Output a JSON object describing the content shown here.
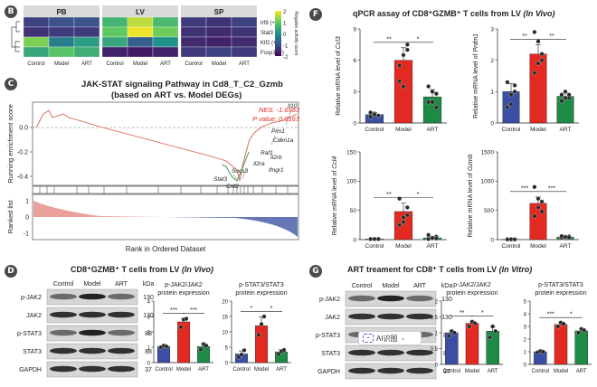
{
  "panels": {
    "B": "B",
    "C": "C",
    "D": "D",
    "F": "F",
    "G": "G"
  },
  "heatmap": {
    "groups": [
      "PB",
      "LV",
      "SP"
    ],
    "rows": [
      "Irf8 (+)",
      "Stat3 (+)",
      "Klf2 (+)",
      "Foxp1 (+)"
    ],
    "xlabels": [
      "Control",
      "Model",
      "ART",
      "Control",
      "Model",
      "ART",
      "Control",
      "Model",
      "ART"
    ],
    "legend_title": "Regulon activity score",
    "legend_ticks": [
      "2",
      "1",
      "0",
      "-1",
      "-2"
    ]
  },
  "gsea": {
    "title1": "JAK-STAT signaling Pathway in Cd8_T_C2_Gzmb",
    "title2": "(based on ART vs. Model DEGs)",
    "ylabel_top": "Running enrichment score",
    "ylabel_bottom": "Ranked list",
    "xlabel": "Rank in Ordered Dataset",
    "nes": "NES: -1.6983",
    "pvalue": "P value: 0.0163",
    "yticks_top": [
      "0.0",
      "-0.2",
      "-0.4"
    ],
    "yticks_bottom": [
      "1",
      "0",
      "-1"
    ],
    "genes": [
      "Il10",
      "Pim1",
      "Cdkn1a",
      "Raf1",
      "Il2rb",
      "Il2ra",
      "Ifngr1",
      "Socs3",
      "Stat3",
      "Crlf2"
    ]
  },
  "panelD": {
    "title": "CD8⁺GZMB⁺ T cells from LV ",
    "title_italic": "(In Vivo)",
    "blot_cols": [
      "Control",
      "Model",
      "ART"
    ],
    "kda": "kDa",
    "blot_rows": [
      {
        "label": "p-JAK2",
        "kda": "130"
      },
      {
        "label": "JAK2",
        "kda": "130"
      },
      {
        "label": "p-STAT3",
        "kda": "88"
      },
      {
        "label": "STAT3",
        "kda": "88"
      },
      {
        "label": "GAPDH",
        "kda": "37"
      }
    ],
    "chart1_title1": "p-JAK2/JAK2",
    "chart1_title2": "protein expression",
    "chart2_title1": "p-STAT3/STAT3",
    "chart2_title2": "protein expression"
  },
  "panelF": {
    "title": "qPCR assay of CD8⁺GZMB⁺ T cells from LV ",
    "title_italic": "(In Vivo)",
    "ylabel_prefix": "Relative mRNA level of "
  },
  "panelG": {
    "title": "ART treament for CD8⁺ T cells from LV ",
    "title_italic": "(In Vitro)",
    "blot_cols": [
      "Control",
      "Model",
      "ART"
    ],
    "kda": "kDa",
    "blot_rows": [
      {
        "label": "p-JAK2",
        "kda": "130"
      },
      {
        "label": "JAK2",
        "kda": "130"
      },
      {
        "label": "p-STAT3",
        "kda": "88"
      },
      {
        "label": "STAT3",
        "kda": "88"
      },
      {
        "label": "GAPDH",
        "kda": "37"
      }
    ],
    "chart1_title1": "p-JAK2/JAK2",
    "chart1_title2": "protein expression",
    "chart2_title1": "p-STAT3/STAT3",
    "chart2_title2": "protein expression",
    "ai_badge": "AI识图"
  },
  "colors": {
    "control": "#3a4fa3",
    "model": "#e32a22",
    "art": "#1e8a45"
  },
  "chart_data": [
    {
      "type": "heatmap",
      "title": "Regulon activity",
      "rows": [
        "Irf8 (+)",
        "Stat3 (+)",
        "Klf2 (+)",
        "Foxp1 (+)"
      ],
      "columns": [
        "PB Control",
        "PB Model",
        "PB ART",
        "LV Control",
        "LV Model",
        "LV ART",
        "SP Control",
        "SP Model",
        "SP ART"
      ],
      "values": [
        [
          -1.2,
          -1.0,
          -1.0,
          0.6,
          1.6,
          0.7,
          -1.3,
          -1.4,
          -1.2
        ],
        [
          -1.4,
          -1.3,
          -1.3,
          1.0,
          1.9,
          1.1,
          -1.4,
          -1.5,
          -1.4
        ],
        [
          1.2,
          -0.3,
          0.2,
          0.4,
          -0.8,
          0.0,
          -1.5,
          -1.6,
          -1.5
        ],
        [
          0.4,
          0.9,
          0.5,
          -1.6,
          -1.7,
          -1.6,
          -1.3,
          -1.2,
          -1.3
        ]
      ],
      "vmin": -2,
      "vmax": 2
    },
    {
      "type": "bar",
      "title": "Ccl3",
      "ylabel": "Relative mRNA level of Ccl3",
      "categories": [
        "Control",
        "Model",
        "ART"
      ],
      "values": [
        0.8,
        6.0,
        2.5
      ],
      "errors": [
        0.2,
        1.2,
        0.7
      ],
      "ylim": [
        0,
        9
      ],
      "yticks": [
        0,
        3,
        6,
        9
      ],
      "points": [
        [
          0.6,
          0.9,
          0.7,
          1.0,
          0.8,
          0.7
        ],
        [
          4.0,
          6.5,
          7.0,
          5.5,
          3.5,
          7.5
        ],
        [
          2.0,
          3.0,
          1.5,
          3.5,
          2.0,
          2.8
        ]
      ],
      "sig": [
        [
          "Control",
          "Model",
          "**"
        ],
        [
          "Model",
          "ART",
          "*"
        ]
      ]
    },
    {
      "type": "bar",
      "title": "Prdm1",
      "ylabel": "Relative mRNA level of Prdm1",
      "categories": [
        "Control",
        "Model",
        "ART"
      ],
      "values": [
        1.0,
        2.2,
        0.85
      ],
      "errors": [
        0.25,
        0.3,
        0.12
      ],
      "ylim": [
        0,
        3
      ],
      "yticks": [
        0,
        1,
        2,
        3
      ],
      "points": [
        [
          0.5,
          0.6,
          1.2,
          1.3,
          0.9,
          1.0
        ],
        [
          1.6,
          2.6,
          2.2,
          2.9,
          1.9,
          2.0
        ],
        [
          0.7,
          1.0,
          0.8,
          0.9,
          0.8,
          0.9
        ]
      ],
      "sig": [
        [
          "Control",
          "Model",
          "**"
        ],
        [
          "Model",
          "ART",
          "**"
        ]
      ]
    },
    {
      "type": "bar",
      "title": "Ccl4",
      "ylabel": "Relative mRNA level of Ccl4",
      "categories": [
        "Control",
        "Model",
        "ART"
      ],
      "values": [
        1,
        48,
        3
      ],
      "errors": [
        0.5,
        15,
        1.5
      ],
      "ylim": [
        0,
        150
      ],
      "yticks": [
        0,
        50,
        100,
        150
      ],
      "points": [
        [
          1,
          1,
          1,
          1,
          1,
          1
        ],
        [
          25,
          38,
          55,
          70,
          30,
          42
        ],
        [
          1,
          2,
          5,
          8,
          3,
          2
        ]
      ],
      "sig": [
        [
          "Control",
          "Model",
          "**"
        ],
        [
          "Model",
          "ART",
          "*"
        ]
      ]
    },
    {
      "type": "bar",
      "title": "Gzmb",
      "ylabel": "Relative mRNA level of Gzmb",
      "categories": [
        "Control",
        "Model",
        "ART"
      ],
      "values": [
        5,
        620,
        45
      ],
      "errors": [
        3,
        110,
        12
      ],
      "ylim": [
        0,
        1500
      ],
      "yticks": [
        0,
        500,
        1000,
        1500
      ],
      "points": [
        [
          2,
          3,
          4,
          5,
          6,
          4
        ],
        [
          400,
          550,
          650,
          900,
          700,
          480
        ],
        [
          30,
          40,
          55,
          60,
          45,
          35
        ]
      ],
      "sig": [
        [
          "Control",
          "Model",
          "***"
        ],
        [
          "Model",
          "ART",
          "***"
        ]
      ]
    },
    {
      "type": "bar",
      "title": "p-JAK2/JAK2 protein expression (In Vivo)",
      "categories": [
        "Control",
        "Model",
        "ART"
      ],
      "values": [
        1.05,
        2.65,
        1.05
      ],
      "errors": [
        0.08,
        0.2,
        0.18
      ],
      "ylim": [
        0,
        4
      ],
      "yticks": [
        0,
        1,
        2,
        3,
        4
      ],
      "points": [
        [
          1.0,
          1.1,
          1.05
        ],
        [
          2.3,
          2.8,
          2.85
        ],
        [
          0.85,
          1.2,
          1.1
        ]
      ],
      "sig": [
        [
          "Control",
          "Model",
          "***"
        ],
        [
          "Model",
          "ART",
          "***"
        ]
      ]
    },
    {
      "type": "bar",
      "title": "p-STAT3/STAT3 protein expression (In Vivo)",
      "categories": [
        "Control",
        "Model",
        "ART"
      ],
      "values": [
        2.8,
        12.0,
        3.5
      ],
      "errors": [
        1.0,
        2.8,
        0.8
      ],
      "ylim": [
        0,
        20
      ],
      "yticks": [
        0,
        5,
        10,
        15,
        20
      ],
      "points": [
        [
          1.8,
          2.6,
          4.0
        ],
        [
          9.0,
          12.5,
          15.0
        ],
        [
          2.8,
          3.6,
          4.1
        ]
      ],
      "sig": [
        [
          "Control",
          "Model",
          "*"
        ],
        [
          "Model",
          "ART",
          "*"
        ]
      ]
    },
    {
      "type": "bar",
      "title": "p-JAK2/JAK2 protein expression (In Vitro)",
      "categories": [
        "Control",
        "Model",
        "ART"
      ],
      "values": [
        1.0,
        1.3,
        1.05
      ],
      "errors": [
        0.06,
        0.06,
        0.14
      ],
      "ylim": [
        0,
        2
      ],
      "yticks": [
        0,
        0.5,
        1.0,
        1.5,
        2.0
      ],
      "points": [
        [
          0.9,
          1.05,
          1.0
        ],
        [
          1.2,
          1.35,
          1.3
        ],
        [
          0.85,
          1.2,
          1.05
        ]
      ],
      "sig": [
        [
          "Control",
          "Model",
          "**"
        ],
        [
          "Model",
          "ART",
          "*"
        ]
      ]
    },
    {
      "type": "bar",
      "title": "p-STAT3/STAT3 protein expression (In Vitro)",
      "categories": [
        "Control",
        "Model",
        "ART"
      ],
      "values": [
        1.0,
        3.15,
        2.65
      ],
      "errors": [
        0.08,
        0.12,
        0.15
      ],
      "ylim": [
        0,
        5
      ],
      "yticks": [
        0,
        1,
        2,
        3,
        4,
        5
      ],
      "points": [
        [
          0.95,
          1.05,
          1.0
        ],
        [
          3.0,
          3.3,
          3.2
        ],
        [
          2.5,
          2.8,
          2.7
        ]
      ],
      "sig": [
        [
          "Control",
          "Model",
          "***"
        ],
        [
          "Model",
          "ART",
          "*"
        ]
      ]
    }
  ]
}
